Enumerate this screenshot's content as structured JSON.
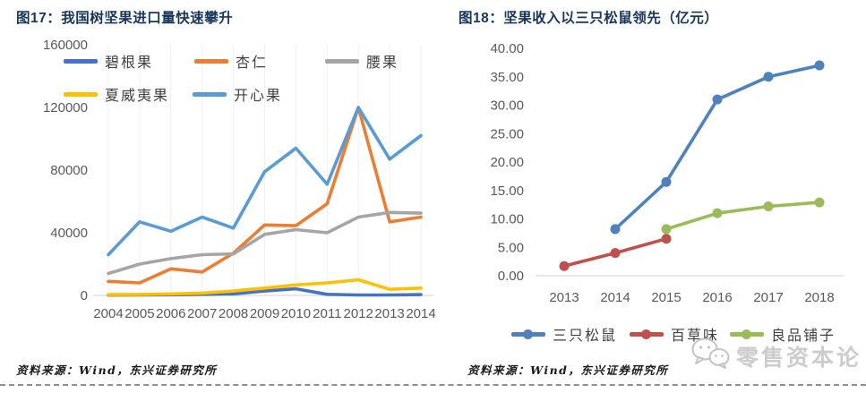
{
  "page": {
    "background": "#ffffff",
    "separator_style": "dashed",
    "separator_color": "#8f8f8f"
  },
  "watermark": {
    "text": "零售资本论",
    "icon": "wechat-logo-icon",
    "color": "#cccccc"
  },
  "figures": [
    {
      "id": "fig17",
      "title": "图17：我国树坚果进口量快速攀升",
      "source": "资料来源：Wind，东兴证券研究所",
      "title_color": "#17365D"
    },
    {
      "id": "fig18",
      "title": "图18：坚果收入以三只松鼠领先（亿元）",
      "source": "资料来源：Wind，东兴证券研究所",
      "title_color": "#17365D"
    }
  ],
  "chart_data": [
    {
      "type": "line",
      "title": "图17：我国树坚果进口量快速攀升",
      "xlabel": "",
      "ylabel": "",
      "categories": [
        "2004",
        "2005",
        "2006",
        "2007",
        "2008",
        "2009",
        "2010",
        "2011",
        "2012",
        "2013",
        "2014"
      ],
      "series": [
        {
          "name": "碧根果",
          "color": "#4472C4",
          "values": [
            200,
            300,
            400,
            700,
            1000,
            2800,
            4200,
            700,
            300,
            300,
            500
          ]
        },
        {
          "name": "杏仁",
          "color": "#ED7D31",
          "values": [
            9000,
            8000,
            17000,
            15000,
            27000,
            45000,
            44500,
            58500,
            120000,
            47000,
            50000
          ]
        },
        {
          "name": "腰果",
          "color": "#A5A5A5",
          "values": [
            14000,
            20000,
            23500,
            26000,
            26500,
            39000,
            42000,
            40000,
            50000,
            53000,
            52500
          ]
        },
        {
          "name": "夏威夷果",
          "color": "#FFC000",
          "values": [
            500,
            600,
            900,
            1500,
            2800,
            4700,
            6700,
            8000,
            10000,
            3900,
            4700
          ]
        },
        {
          "name": "开心果",
          "color": "#5B9BD5",
          "values": [
            26000,
            47000,
            41000,
            50000,
            43000,
            79000,
            94000,
            71000,
            120000,
            87000,
            102000
          ]
        }
      ],
      "ylim": [
        0,
        160000
      ],
      "yticks": [
        {
          "v": 160000,
          "label": "160000"
        },
        {
          "v": 120000,
          "label": "120000"
        },
        {
          "v": 80000,
          "label": "80000"
        },
        {
          "v": 40000,
          "label": "40000"
        },
        {
          "v": 0,
          "label": "0"
        }
      ],
      "grid": "vertical",
      "markers": false,
      "legend_position": "top"
    },
    {
      "type": "line",
      "title": "图18：坚果收入以三只松鼠领先（亿元）",
      "xlabel": "",
      "ylabel": "",
      "categories": [
        "2013",
        "2014",
        "2015",
        "2016",
        "2017",
        "2018"
      ],
      "series": [
        {
          "name": "三只松鼠",
          "color": "#4F81BD",
          "values": [
            null,
            8.2,
            16.5,
            31.0,
            35.0,
            37.0
          ]
        },
        {
          "name": "百草味",
          "color": "#C0504D",
          "values": [
            1.7,
            4.0,
            6.5,
            null,
            null,
            null
          ]
        },
        {
          "name": "良品铺子",
          "color": "#9BBB59",
          "values": [
            null,
            null,
            8.2,
            11.0,
            12.2,
            12.9
          ]
        }
      ],
      "ylim": [
        0,
        40
      ],
      "yticks": [
        {
          "v": 40,
          "label": "40.00"
        },
        {
          "v": 35,
          "label": "35.00"
        },
        {
          "v": 30,
          "label": "30.00"
        },
        {
          "v": 25,
          "label": "25.00"
        },
        {
          "v": 20,
          "label": "20.00"
        },
        {
          "v": 15,
          "label": "15.00"
        },
        {
          "v": 10,
          "label": "10.00"
        },
        {
          "v": 5,
          "label": "5.00"
        },
        {
          "v": 0,
          "label": "0.00"
        }
      ],
      "grid": "none",
      "markers": true,
      "legend_position": "bottom"
    }
  ]
}
